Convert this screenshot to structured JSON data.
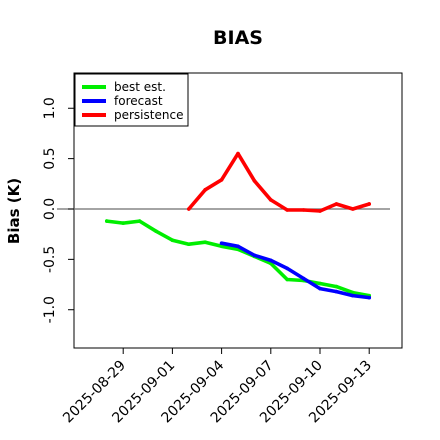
{
  "chart_data": {
    "type": "line",
    "title": "BIAS",
    "xlabel": "",
    "ylabel": "Bias (K)",
    "x_start": "2025-08-26",
    "x_end": "2025-09-15",
    "ylim": [
      -1.38,
      1.35
    ],
    "grid": false,
    "legend_position": "top-left",
    "reference_line": 0,
    "x_ticks": [
      {
        "label": "2025-08-29",
        "color": "#000000"
      },
      {
        "label": "2025-09-01",
        "color": "#000000"
      },
      {
        "label": "2025-09-04",
        "color": "#228B22"
      },
      {
        "label": "2025-09-07",
        "color": "#000000"
      },
      {
        "label": "2025-09-10",
        "color": "#000000"
      },
      {
        "label": "2025-09-13",
        "color": "#000000"
      }
    ],
    "y_ticks": [
      {
        "value": -1.0,
        "label": "-1.0"
      },
      {
        "value": -0.5,
        "label": "-0.5"
      },
      {
        "value": 0.0,
        "label": "0.0"
      },
      {
        "value": 0.5,
        "label": "0.5"
      },
      {
        "value": 1.0,
        "label": "1.0"
      }
    ],
    "series": [
      {
        "name": "best est.",
        "color": "#00ee00",
        "points": [
          [
            "2025-08-28",
            -0.12
          ],
          [
            "2025-08-29",
            -0.14
          ],
          [
            "2025-08-30",
            -0.12
          ],
          [
            "2025-08-31",
            -0.22
          ],
          [
            "2025-09-01",
            -0.31
          ],
          [
            "2025-09-02",
            -0.35
          ],
          [
            "2025-09-03",
            -0.33
          ],
          [
            "2025-09-04",
            -0.37
          ],
          [
            "2025-09-05",
            -0.4
          ],
          [
            "2025-09-06",
            -0.47
          ],
          [
            "2025-09-07",
            -0.54
          ],
          [
            "2025-09-08",
            -0.7
          ],
          [
            "2025-09-09",
            -0.71
          ],
          [
            "2025-09-10",
            -0.74
          ],
          [
            "2025-09-11",
            -0.77
          ],
          [
            "2025-09-12",
            -0.83
          ],
          [
            "2025-09-13",
            -0.86
          ]
        ]
      },
      {
        "name": "forecast",
        "color": "#0000ff",
        "points": [
          [
            "2025-09-04",
            -0.34
          ],
          [
            "2025-09-05",
            -0.37
          ],
          [
            "2025-09-06",
            -0.46
          ],
          [
            "2025-09-07",
            -0.51
          ],
          [
            "2025-09-08",
            -0.59
          ],
          [
            "2025-09-09",
            -0.69
          ],
          [
            "2025-09-10",
            -0.79
          ],
          [
            "2025-09-11",
            -0.82
          ],
          [
            "2025-09-12",
            -0.86
          ],
          [
            "2025-09-13",
            -0.88
          ]
        ]
      },
      {
        "name": "persistence",
        "color": "#ff0000",
        "points": [
          [
            "2025-09-02",
            0.0
          ],
          [
            "2025-09-03",
            0.19
          ],
          [
            "2025-09-04",
            0.29
          ],
          [
            "2025-09-05",
            0.55
          ],
          [
            "2025-09-06",
            0.28
          ],
          [
            "2025-09-07",
            0.09
          ],
          [
            "2025-09-08",
            -0.01
          ],
          [
            "2025-09-09",
            -0.01
          ],
          [
            "2025-09-10",
            -0.02
          ],
          [
            "2025-09-11",
            0.05
          ],
          [
            "2025-09-12",
            0.0
          ],
          [
            "2025-09-13",
            0.05
          ]
        ]
      }
    ]
  }
}
